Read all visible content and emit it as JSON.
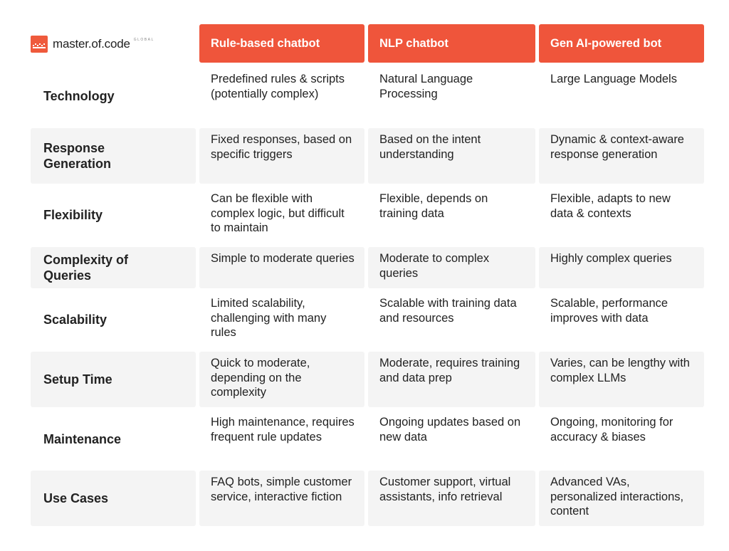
{
  "logo": {
    "name": "master.of.code",
    "sub": "GLOBAL",
    "mark_color": "#ef5a3c"
  },
  "columns": [
    "Rule-based chatbot",
    "NLP chatbot",
    "Gen AI-powered bot"
  ],
  "accent_color": "#ef553b",
  "rows": [
    {
      "label": "Technology",
      "values": [
        "Predefined rules & scripts (potentially complex)",
        "Natural Language Processing",
        "Large Language Models"
      ]
    },
    {
      "label": "Response Generation",
      "values": [
        "Fixed responses, based on specific triggers",
        "Based on the intent understanding",
        "Dynamic & context-aware response generation"
      ]
    },
    {
      "label": "Flexibility",
      "values": [
        "Can be flexible with complex logic, but difficult to maintain",
        "Flexible, depends on training data",
        "Flexible, adapts to new data & contexts"
      ]
    },
    {
      "label": "Complexity of Queries",
      "values": [
        "Simple to moderate queries",
        "Moderate to complex queries",
        "Highly complex queries"
      ]
    },
    {
      "label": "Scalability",
      "values": [
        "Limited scalability, challenging with many rules",
        "Scalable with training data and resources",
        "Scalable, performance improves with data"
      ]
    },
    {
      "label": "Setup Time",
      "values": [
        "Quick to moderate, depending on the complexity",
        "Moderate, requires training and data prep",
        "Varies, can be lengthy with complex LLMs"
      ]
    },
    {
      "label": "Maintenance",
      "values": [
        "High maintenance, requires frequent rule updates",
        "Ongoing updates based on new data",
        "Ongoing, monitoring for accuracy & biases"
      ]
    },
    {
      "label": "Use Cases",
      "values": [
        "FAQ bots, simple customer service, interactive fiction",
        "Customer support, virtual assistants, info retrieval",
        "Advanced VAs, personalized interactions, content"
      ]
    }
  ]
}
